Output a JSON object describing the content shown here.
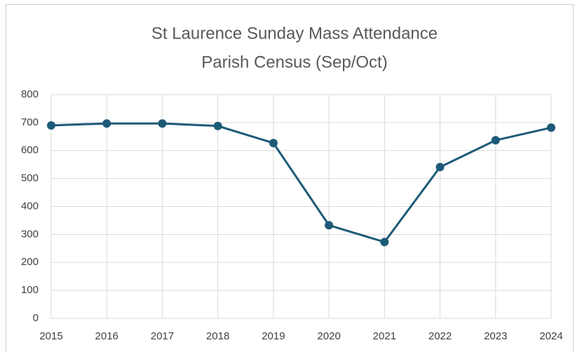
{
  "chart_data": {
    "type": "line",
    "title": "St Laurence Sunday Mass Attendance",
    "subtitle": "Parish Census (Sep/Oct)",
    "x": [
      2015,
      2016,
      2017,
      2018,
      2019,
      2020,
      2021,
      2022,
      2023,
      2024
    ],
    "series": [
      {
        "name": "Attendance",
        "color": "#1d5a78",
        "values": [
          690,
          697,
          697,
          688,
          627,
          333,
          273,
          541,
          637,
          682
        ]
      }
    ],
    "xlim": [
      2015,
      2024
    ],
    "xticks": [
      2015,
      2016,
      2017,
      2018,
      2019,
      2020,
      2021,
      2022,
      2023,
      2024
    ],
    "ylim": [
      0,
      800
    ],
    "yticks": [
      0,
      100,
      200,
      300,
      400,
      500,
      600,
      700,
      800
    ],
    "grid": true
  }
}
